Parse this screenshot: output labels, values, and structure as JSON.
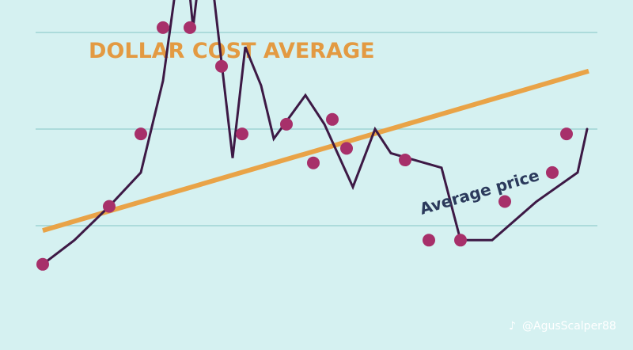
{
  "chart_data": {
    "type": "line",
    "title": "DOLLAR COST AVERAGE",
    "xlabel": "",
    "ylabel": "",
    "grid": true,
    "gridlines": [
      1,
      2,
      3
    ],
    "ylim": [
      0,
      4
    ],
    "price_line": {
      "points": [
        [
          0,
          0.6
        ],
        [
          1,
          0.85
        ],
        [
          2.1,
          1.2
        ],
        [
          3.1,
          1.55
        ],
        [
          3.8,
          2.5
        ],
        [
          4.45,
          4.05
        ],
        [
          4.75,
          3.05
        ],
        [
          5.05,
          3.88
        ],
        [
          5.4,
          3.4
        ],
        [
          6.0,
          1.7
        ],
        [
          6.4,
          2.85
        ],
        [
          6.9,
          2.45
        ],
        [
          7.3,
          1.9
        ],
        [
          8.3,
          2.35
        ],
        [
          8.9,
          2.05
        ],
        [
          9.8,
          1.4
        ],
        [
          10.5,
          2.0
        ],
        [
          11.0,
          1.75
        ],
        [
          12.6,
          1.6
        ],
        [
          13.2,
          0.85
        ],
        [
          14.2,
          0.85
        ],
        [
          15.6,
          1.25
        ],
        [
          16.9,
          1.55
        ],
        [
          17.2,
          2.0
        ]
      ]
    },
    "purchases": [
      [
        0,
        0.6
      ],
      [
        2.1,
        1.2
      ],
      [
        3.1,
        1.95
      ],
      [
        3.8,
        3.05
      ],
      [
        4.25,
        3.65
      ],
      [
        4.65,
        3.05
      ],
      [
        5.65,
        2.65
      ],
      [
        6.3,
        1.95
      ],
      [
        7.7,
        2.05
      ],
      [
        8.55,
        1.65
      ],
      [
        9.15,
        2.1
      ],
      [
        9.6,
        1.8
      ],
      [
        11.45,
        1.68
      ],
      [
        12.2,
        0.85
      ],
      [
        13.2,
        0.85
      ],
      [
        14.6,
        1.25
      ],
      [
        16.1,
        1.55
      ],
      [
        16.55,
        1.95
      ]
    ],
    "average_line": {
      "points": [
        [
          0,
          0.95
        ],
        [
          17.2,
          2.6
        ]
      ],
      "label": "Average price"
    },
    "colors": {
      "background": "#d5f1f1",
      "title": "#e39a42",
      "price_line": "#3d1945",
      "purchase_point": "#a7306a",
      "average_line": "#e9a347",
      "average_label": "#2b3a5c",
      "grid": "#9fd4d4",
      "watermark": "#ffffff"
    }
  },
  "watermark": "@AgusScalper88"
}
